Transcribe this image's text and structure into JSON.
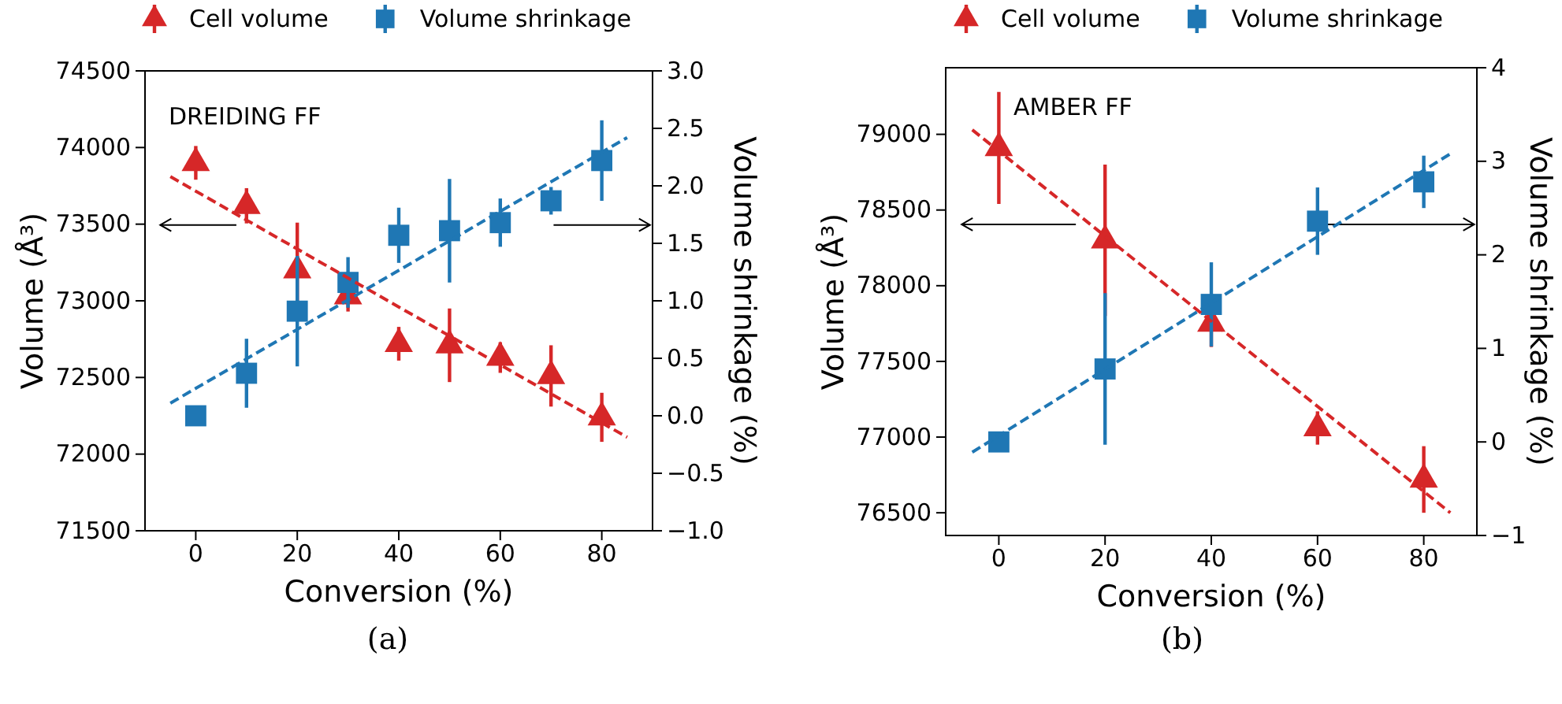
{
  "chart_data": [
    {
      "type": "scatter",
      "xlabel": "Conversion (%)",
      "ylabel": "Volume (Å³)",
      "y2label": "Volume shrinkage (%)",
      "legend": "top",
      "grid": false,
      "annotations": [
        "DREIDING FF",
        "(a)"
      ],
      "xlim": [
        -10,
        90
      ],
      "xticks": [
        0,
        20,
        40,
        60,
        80
      ],
      "ylim": [
        71500,
        74500
      ],
      "yticks": [
        71500,
        72000,
        72500,
        73000,
        73500,
        74000,
        74500
      ],
      "y2lim": [
        -1.0,
        3.0
      ],
      "y2ticks": [
        {
          "value": -1.0,
          "label": "−1.0"
        },
        {
          "value": -0.5,
          "label": "−0.5"
        },
        {
          "value": 0.0,
          "label": "0.0"
        },
        {
          "value": 0.5,
          "label": "0.5"
        },
        {
          "value": 1.0,
          "label": "1.0"
        },
        {
          "value": 1.5,
          "label": "1.5"
        },
        {
          "value": 2.0,
          "label": "2.0"
        },
        {
          "value": 2.5,
          "label": "2.5"
        },
        {
          "value": 3.0,
          "label": "3.0"
        }
      ],
      "series": [
        {
          "name": "Cell volume",
          "type": "scatter",
          "marker": "triangle",
          "color": "#d62728",
          "x": [
            0,
            10,
            20,
            30,
            40,
            50,
            60,
            70,
            80
          ],
          "values": [
            73900,
            73620,
            73200,
            73030,
            72720,
            72710,
            72630,
            72510,
            72240
          ],
          "errors": [
            110,
            115,
            310,
            100,
            110,
            240,
            100,
            200,
            160
          ]
        },
        {
          "name": "Volume shrinkage",
          "type": "scatter",
          "marker": "square",
          "axis": "y2",
          "color": "#1f77b4",
          "x": [
            0,
            10,
            20,
            30,
            40,
            50,
            60,
            70,
            80
          ],
          "values": [
            0.0,
            0.37,
            0.91,
            1.16,
            1.57,
            1.61,
            1.68,
            1.87,
            2.22
          ],
          "errors": [
            null,
            0.3,
            0.48,
            0.22,
            0.24,
            0.45,
            0.21,
            0.12,
            0.35
          ]
        },
        {
          "type": "line",
          "line_style": "dashed",
          "marker": "none",
          "color": "#d62728",
          "x": [
            -5,
            85
          ],
          "values": [
            73810,
            72110
          ]
        },
        {
          "type": "line",
          "line_style": "dashed",
          "marker": "none",
          "axis": "y2",
          "color": "#1f77b4",
          "x": [
            -5,
            85
          ],
          "values": [
            0.11,
            2.42
          ]
        }
      ]
    },
    {
      "type": "scatter",
      "xlabel": "Conversion (%)",
      "ylabel": "Volume (Å³)",
      "y2label": "Volume shrinkage (%)",
      "legend": "top",
      "grid": false,
      "annotations": [
        "AMBER FF",
        "(b)"
      ],
      "xlim": [
        -10,
        90
      ],
      "xticks": [
        0,
        20,
        40,
        60,
        80
      ],
      "ylim": [
        76350,
        79440
      ],
      "yticks": [
        76500,
        77000,
        77500,
        78000,
        78500,
        79000
      ],
      "y2lim": [
        -1,
        4
      ],
      "y2ticks": [
        {
          "value": -1,
          "label": "−1"
        },
        0,
        1,
        2,
        3,
        4
      ],
      "series": [
        {
          "name": "Cell volume",
          "type": "scatter",
          "marker": "triangle",
          "color": "#d62728",
          "x": [
            0,
            20,
            40,
            60,
            80
          ],
          "values": [
            78910,
            78300,
            77750,
            77060,
            76720
          ],
          "errors": [
            370,
            500,
            155,
            110,
            220
          ]
        },
        {
          "name": "Volume shrinkage",
          "type": "scatter",
          "marker": "square",
          "axis": "y2",
          "color": "#1f77b4",
          "x": [
            0,
            20,
            40,
            60,
            80
          ],
          "values": [
            0.0,
            0.78,
            1.47,
            2.36,
            2.78
          ],
          "errors": [
            null,
            0.81,
            0.45,
            0.36,
            0.28
          ]
        },
        {
          "type": "line",
          "line_style": "dashed",
          "marker": "none",
          "color": "#d62728",
          "x": [
            -5,
            85
          ],
          "values": [
            79030,
            76500
          ]
        },
        {
          "type": "line",
          "line_style": "dashed",
          "marker": "none",
          "axis": "y2",
          "color": "#1f77b4",
          "x": [
            -5,
            85
          ],
          "values": [
            -0.11,
            3.08
          ]
        }
      ]
    }
  ]
}
